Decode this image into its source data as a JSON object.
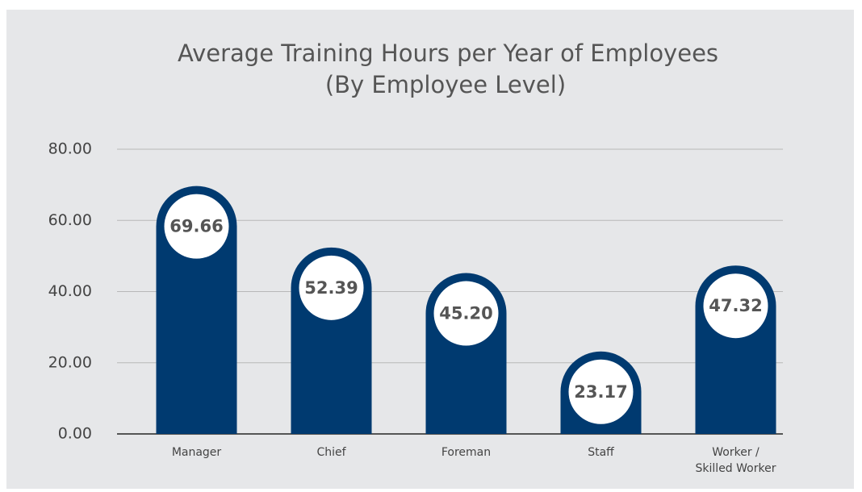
{
  "chart_data": {
    "type": "bar",
    "title": "Average Training Hours per Year of Employees",
    "subtitle": "(By Employee Level)",
    "categories": [
      "Manager",
      "Chief",
      "Foreman",
      "Staff",
      "Worker /\nSkilled Worker"
    ],
    "values": [
      69.66,
      52.39,
      45.2,
      23.17,
      47.32
    ],
    "value_labels": [
      "69.66",
      "52.39",
      "45.20",
      "23.17",
      "47.32"
    ],
    "color": "#003a70",
    "ylim": [
      0,
      80
    ],
    "yticks": [
      {
        "value": 0,
        "label": "0.00"
      },
      {
        "value": 20,
        "label": "20.00"
      },
      {
        "value": 40,
        "label": "40.00"
      },
      {
        "value": 60,
        "label": "60.00"
      },
      {
        "value": 80,
        "label": "80.00"
      }
    ],
    "grid": true
  }
}
